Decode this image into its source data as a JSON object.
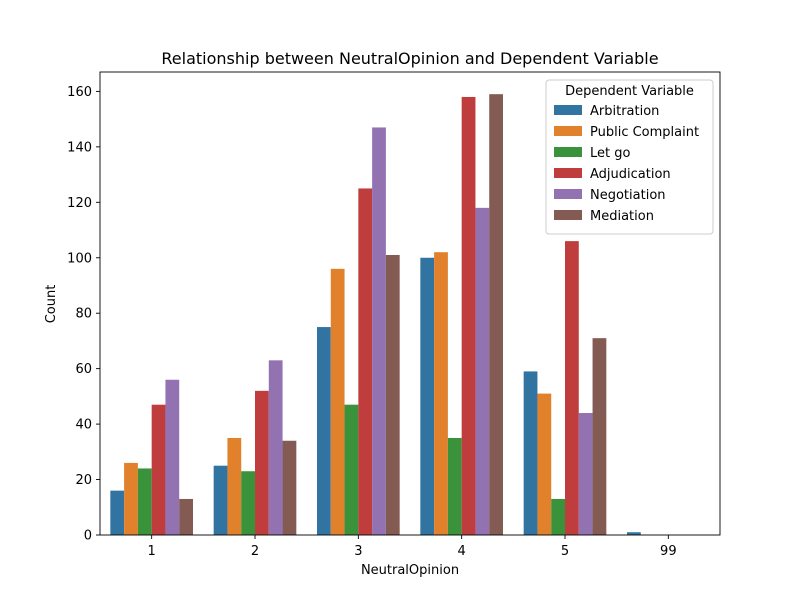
{
  "chart_data": {
    "type": "bar",
    "title": "Relationship between NeutralOpinion and Dependent Variable",
    "xlabel": "NeutralOpinion",
    "ylabel": "Count",
    "categories": [
      "1",
      "2",
      "3",
      "4",
      "5",
      "99"
    ],
    "ylim": [
      0,
      167
    ],
    "yticks": [
      0,
      20,
      40,
      60,
      80,
      100,
      120,
      140,
      160
    ],
    "grid": false,
    "legend": {
      "title": "Dependent Variable",
      "placement": "top-right"
    },
    "series": [
      {
        "name": "Arbitration",
        "color": "#3274a1",
        "values": [
          16,
          25,
          75,
          100,
          59,
          1
        ]
      },
      {
        "name": "Public Complaint",
        "color": "#e1812c",
        "values": [
          26,
          35,
          96,
          102,
          51,
          0
        ]
      },
      {
        "name": "Let go",
        "color": "#3a923a",
        "values": [
          24,
          23,
          47,
          35,
          13,
          0
        ]
      },
      {
        "name": "Adjudication",
        "color": "#c03d3e",
        "values": [
          47,
          52,
          125,
          158,
          106,
          0
        ]
      },
      {
        "name": "Negotiation",
        "color": "#9372b2",
        "values": [
          56,
          63,
          147,
          118,
          44,
          0
        ]
      },
      {
        "name": "Mediation",
        "color": "#845b53",
        "values": [
          13,
          34,
          101,
          159,
          71,
          0
        ]
      }
    ]
  }
}
